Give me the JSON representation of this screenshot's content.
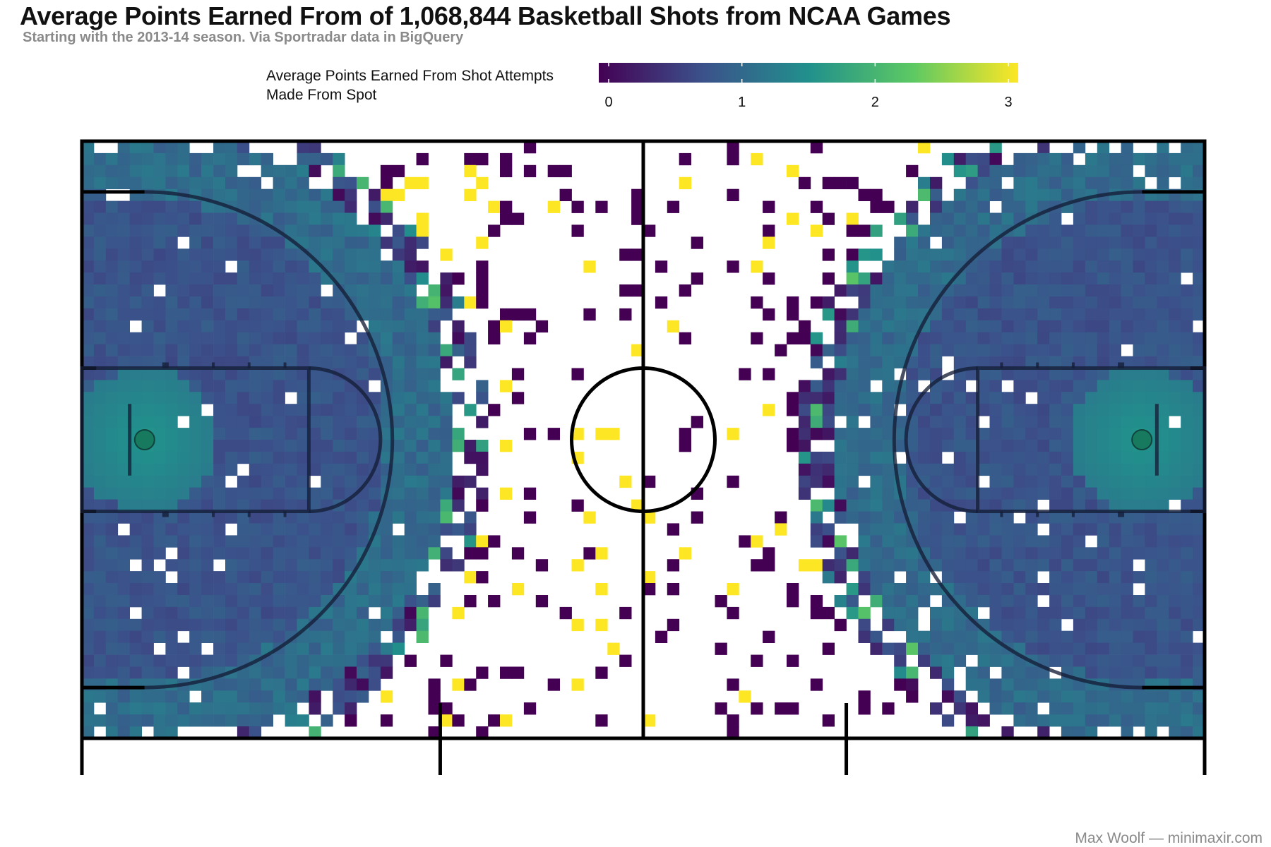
{
  "chart_data": {
    "type": "heatmap",
    "title": "Average Points Earned From of 1,068,844 Basketball Shots from NCAA Games",
    "subtitle": "Starting with the 2013-14 season. Via Sportradar data in BigQuery",
    "legend": {
      "title_lines": [
        "Average Points Earned From Shot Attempts",
        "Made From Spot"
      ],
      "range": [
        0,
        3
      ],
      "ticks": [
        0,
        1,
        2,
        3
      ],
      "placement": "top"
    },
    "colors": [
      "#440154",
      "#3b528b",
      "#21908c",
      "#5dc963",
      "#fde725"
    ],
    "court": {
      "length_ft": 94,
      "width_ft": 50,
      "three_point_radius_ft": 20.75,
      "basket_offset_ft": 5.25
    },
    "summary": {
      "paint_near_basket": 1.3,
      "mid_range": 0.8,
      "three_point_ring": 1.1,
      "beyond_half_court": "sparse, values 0 or 3"
    },
    "total_shots": 1068844,
    "credit": "Max Woolf — minimaxir.com"
  }
}
